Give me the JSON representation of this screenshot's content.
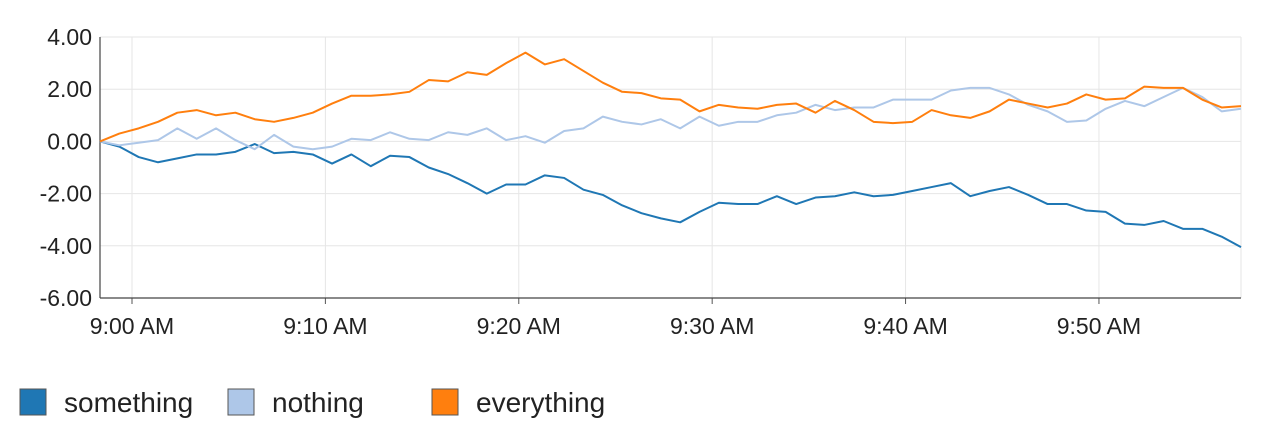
{
  "chart_data": {
    "type": "line",
    "x_labels": [
      "9:00 AM",
      "9:10 AM",
      "9:20 AM",
      "9:30 AM",
      "9:40 AM",
      "9:50 AM"
    ],
    "x_label_minutes": [
      0,
      10,
      20,
      30,
      40,
      50
    ],
    "x": [
      0,
      1,
      2,
      3,
      4,
      5,
      6,
      7,
      8,
      9,
      10,
      11,
      12,
      13,
      14,
      15,
      16,
      17,
      18,
      19,
      20,
      21,
      22,
      23,
      24,
      25,
      26,
      27,
      28,
      29,
      30,
      31,
      32,
      33,
      34,
      35,
      36,
      37,
      38,
      39,
      40,
      41,
      42,
      43,
      44,
      45,
      46,
      47,
      48,
      49,
      50,
      51,
      52,
      53,
      54,
      55,
      56,
      57,
      58,
      59
    ],
    "xlim": [
      0,
      59
    ],
    "ylim": [
      -6,
      4
    ],
    "y_ticks": [
      "4.00",
      "2.00",
      "0.00",
      "-2.00",
      "-4.00",
      "-6.00"
    ],
    "y_tick_values": [
      4,
      2,
      0,
      -2,
      -4,
      -6
    ],
    "grid": true,
    "legend_position": "bottom-left",
    "series": [
      {
        "name": "something",
        "color": "#1f77b4",
        "values": [
          0.0,
          -0.2,
          -0.6,
          -0.8,
          -0.65,
          -0.5,
          -0.5,
          -0.4,
          -0.1,
          -0.45,
          -0.4,
          -0.5,
          -0.85,
          -0.5,
          -0.95,
          -0.55,
          -0.6,
          -1.0,
          -1.25,
          -1.6,
          -2.0,
          -1.65,
          -1.65,
          -1.3,
          -1.4,
          -1.85,
          -2.05,
          -2.45,
          -2.75,
          -2.95,
          -3.1,
          -2.7,
          -2.35,
          -2.4,
          -2.4,
          -2.1,
          -2.4,
          -2.15,
          -2.1,
          -1.95,
          -2.1,
          -2.05,
          -1.9,
          -1.75,
          -1.6,
          -2.1,
          -1.9,
          -1.75,
          -2.05,
          -2.4,
          -2.4,
          -2.65,
          -2.7,
          -3.15,
          -3.2,
          -3.05,
          -3.35,
          -3.35,
          -3.65,
          -4.05
        ]
      },
      {
        "name": "nothing",
        "color": "#aec7e8",
        "values": [
          0.0,
          -0.15,
          -0.05,
          0.05,
          0.5,
          0.1,
          0.5,
          0.05,
          -0.3,
          0.25,
          -0.2,
          -0.3,
          -0.2,
          0.1,
          0.05,
          0.35,
          0.1,
          0.05,
          0.35,
          0.25,
          0.5,
          0.05,
          0.2,
          -0.05,
          0.4,
          0.5,
          0.95,
          0.75,
          0.65,
          0.85,
          0.5,
          0.95,
          0.6,
          0.75,
          0.75,
          1.0,
          1.1,
          1.4,
          1.2,
          1.3,
          1.3,
          1.6,
          1.6,
          1.6,
          1.95,
          2.05,
          2.05,
          1.8,
          1.4,
          1.15,
          0.75,
          0.8,
          1.25,
          1.55,
          1.35,
          1.7,
          2.05,
          1.7,
          1.15,
          1.25
        ]
      },
      {
        "name": "everything",
        "color": "#ff7f0e",
        "values": [
          0.0,
          0.3,
          0.5,
          0.75,
          1.1,
          1.2,
          1.0,
          1.1,
          0.85,
          0.75,
          0.9,
          1.1,
          1.45,
          1.75,
          1.75,
          1.8,
          1.9,
          2.35,
          2.3,
          2.65,
          2.55,
          3.0,
          3.4,
          2.95,
          3.15,
          2.7,
          2.25,
          1.9,
          1.85,
          1.65,
          1.6,
          1.15,
          1.4,
          1.3,
          1.25,
          1.4,
          1.45,
          1.1,
          1.55,
          1.2,
          0.75,
          0.7,
          0.75,
          1.2,
          1.0,
          0.9,
          1.15,
          1.6,
          1.45,
          1.3,
          1.45,
          1.8,
          1.6,
          1.65,
          2.1,
          2.05,
          2.05,
          1.6,
          1.3,
          1.35
        ]
      }
    ]
  }
}
